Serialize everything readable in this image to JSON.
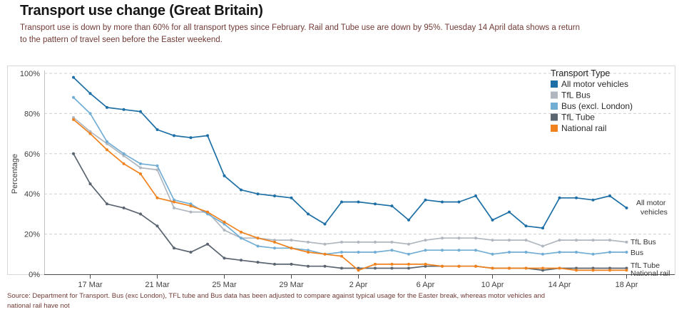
{
  "header": {
    "title": "Transport use change (Great Britain)",
    "subtitle_line1": "Transport use is down by more than 60% for all transport types since February. Rail and Tube use are down by 95%. Tuesday 14 April data shows a return",
    "subtitle_line2": "to the pattern of travel seen before the Easter weekend."
  },
  "footer": {
    "source_line1": "Source: Department for Transport. Bus (exc London), TFL tube and Bus data has been adjusted to compare against typical usage for the Easter break, whereas motor vehicles and",
    "source_line2": "national rail have not"
  },
  "chart_data": {
    "type": "line",
    "title": "Transport use change (Great Britain)",
    "ylabel": "Percentage",
    "ylim": [
      0,
      100
    ],
    "yticks": [
      0,
      20,
      40,
      60,
      80,
      100
    ],
    "ytick_labels": [
      "0%",
      "20%",
      "40%",
      "60%",
      "80%",
      "100%"
    ],
    "grid": "dashed-horizontal",
    "legend_title": "Transport Type",
    "legend_position": "top-right",
    "x": [
      "16 Mar",
      "17 Mar",
      "18 Mar",
      "19 Mar",
      "20 Mar",
      "21 Mar",
      "22 Mar",
      "23 Mar",
      "24 Mar",
      "25 Mar",
      "26 Mar",
      "27 Mar",
      "28 Mar",
      "29 Mar",
      "30 Mar",
      "31 Mar",
      "1 Apr",
      "2 Apr",
      "3 Apr",
      "4 Apr",
      "5 Apr",
      "6 Apr",
      "7 Apr",
      "8 Apr",
      "9 Apr",
      "10 Apr",
      "11 Apr",
      "12 Apr",
      "13 Apr",
      "14 Apr",
      "15 Apr",
      "16 Apr",
      "17 Apr",
      "18 Apr"
    ],
    "xtick_labels": [
      "17 Mar",
      "21 Mar",
      "25 Mar",
      "29 Mar",
      "2 Apr",
      "6 Apr",
      "10 Apr",
      "14 Apr",
      "18 Apr"
    ],
    "xtick_positions": [
      1,
      5,
      9,
      13,
      17,
      21,
      25,
      29,
      33
    ],
    "series": [
      {
        "name": "All motor vehicles",
        "color": "#1d6fa5",
        "end_label": [
          "All motor",
          "vehicles"
        ],
        "values": [
          98,
          90,
          83,
          82,
          81,
          72,
          69,
          68,
          69,
          49,
          42,
          40,
          39,
          38,
          30,
          25,
          36,
          36,
          35,
          34,
          27,
          37,
          36,
          36,
          39,
          27,
          31,
          24,
          23,
          38,
          38,
          37,
          39,
          33
        ]
      },
      {
        "name": "TfL Bus",
        "color": "#b0b7bf",
        "end_label": [
          "TfL Bus"
        ],
        "values": [
          78,
          71,
          65,
          59,
          53,
          52,
          33,
          31,
          31,
          22,
          18,
          18,
          17,
          17,
          16,
          15,
          16,
          16,
          16,
          16,
          15,
          17,
          18,
          18,
          18,
          17,
          17,
          17,
          14,
          17,
          17,
          17,
          17,
          16
        ]
      },
      {
        "name": "Bus (excl. London)",
        "color": "#72add4",
        "end_label": [
          "Bus"
        ],
        "values": [
          88,
          80,
          66,
          60,
          55,
          54,
          37,
          35,
          30,
          25,
          18,
          14,
          13,
          13,
          12,
          10,
          11,
          11,
          11,
          12,
          10,
          12,
          12,
          12,
          12,
          10,
          11,
          11,
          10,
          11,
          11,
          10,
          11,
          11
        ]
      },
      {
        "name": "TfL Tube",
        "color": "#5b6570",
        "end_label": [
          "TfL Tube"
        ],
        "values": [
          60,
          45,
          35,
          33,
          30,
          24,
          13,
          11,
          15,
          8,
          7,
          6,
          5,
          5,
          4,
          4,
          3,
          3,
          3,
          3,
          3,
          4,
          4,
          4,
          4,
          3,
          3,
          3,
          2,
          3,
          3,
          3,
          3,
          3
        ]
      },
      {
        "name": "National rail",
        "color": "#f0821e",
        "end_label": [
          "National rail"
        ],
        "values": [
          77,
          70,
          62,
          55,
          50,
          38,
          36,
          34,
          31,
          26,
          21,
          18,
          16,
          13,
          11,
          10,
          9,
          2,
          5,
          5,
          5,
          5,
          4,
          4,
          4,
          3,
          3,
          3,
          3,
          3,
          2,
          2,
          2,
          2
        ]
      }
    ]
  }
}
